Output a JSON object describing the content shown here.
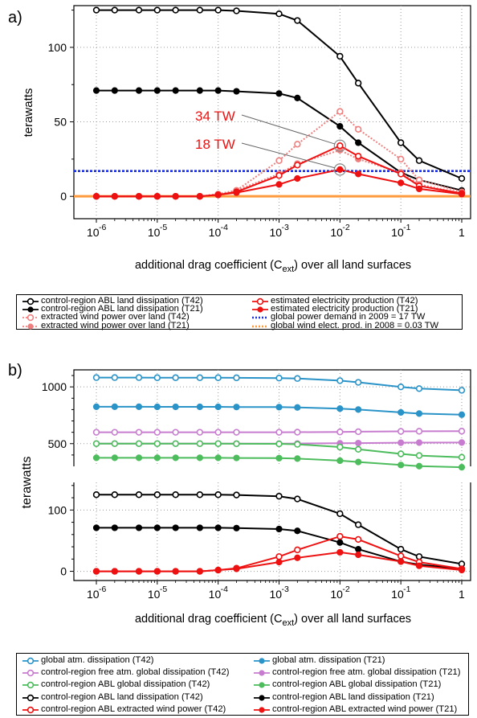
{
  "chart_data": [
    {
      "type": "line",
      "panel_label": "a)",
      "xlabel_main": "additional drag coefficient (C",
      "xlabel_sub": "ext",
      "xlabel_tail": ") over all land surfaces",
      "ylabel": "terawatts",
      "xscale": "log",
      "xlim": [
        1e-06,
        1
      ],
      "ylim": [
        -15,
        128
      ],
      "x_ticks": [
        {
          "v": 1e-06,
          "exp": "-6"
        },
        {
          "v": 1e-05,
          "exp": "-5"
        },
        {
          "v": 0.0001,
          "exp": "-4"
        },
        {
          "v": 0.001,
          "exp": "-3"
        },
        {
          "v": 0.01,
          "exp": "-2"
        },
        {
          "v": 0.1,
          "exp": "-1"
        },
        {
          "v": 1,
          "exp": ""
        }
      ],
      "x_tick_base": "10",
      "y_ticks": [
        {
          "v": 0,
          "label": "0"
        },
        {
          "v": 50,
          "label": "50"
        },
        {
          "v": 100,
          "label": "100"
        }
      ],
      "grid": true,
      "x": [
        1e-06,
        2e-06,
        5e-06,
        1e-05,
        2e-05,
        5e-05,
        0.0001,
        0.0002,
        0.001,
        0.002,
        0.01,
        0.02,
        0.1,
        0.2,
        1
      ],
      "series": [
        {
          "name": "control-region ABL land dissipation (T42)",
          "color": "#000000",
          "marker": "open",
          "dash": false,
          "values": [
            125,
            125,
            125,
            125,
            125,
            125,
            125,
            124.5,
            122.5,
            118,
            94,
            76,
            36,
            24,
            12
          ]
        },
        {
          "name": "control-region ABL land dissipation (T21)",
          "color": "#000000",
          "marker": "filled",
          "dash": false,
          "values": [
            71,
            71,
            71,
            71,
            71,
            71,
            71,
            70.5,
            69,
            66,
            47,
            36,
            16,
            11,
            4
          ]
        },
        {
          "name": "extracted wind power over land (T42)",
          "color": "#f08080",
          "marker": "open",
          "dash": true,
          "values": [
            0,
            0,
            0,
            0,
            0,
            0,
            1.5,
            4,
            24,
            35,
            57,
            45,
            25,
            11,
            3
          ]
        },
        {
          "name": "extracted wind power over land (T21)",
          "color": "#f08080",
          "marker": "filled",
          "dash": true,
          "values": [
            0,
            0,
            0,
            0,
            0,
            0,
            1.5,
            4,
            15,
            22,
            31,
            25,
            16,
            8,
            2
          ]
        },
        {
          "name": "estimated electricity production (T42)",
          "color": "#ee1111",
          "marker": "open",
          "dash": false,
          "values": [
            0,
            0,
            0,
            0,
            0,
            0,
            1,
            3,
            14,
            21,
            34,
            27,
            15,
            7,
            2
          ]
        },
        {
          "name": "estimated electricity production (T21)",
          "color": "#ee1111",
          "marker": "filled",
          "dash": false,
          "values": [
            0,
            0,
            0,
            0,
            0,
            0,
            1,
            2.5,
            8,
            12,
            18,
            15,
            9,
            5,
            1.5
          ]
        }
      ],
      "hlines": [
        {
          "name": "global power demand in 2009 = 17 TW",
          "value": 17,
          "color": "#1a2fe0",
          "dash": "dot"
        },
        {
          "name": "global wind elect. prod. in 2008 = 0.03 TW",
          "value": 0.03,
          "color": "#ff9a3c",
          "dash": "dot"
        }
      ],
      "annotations": [
        {
          "text": "34 TW",
          "color": "#ee1111",
          "point_x": 0.01,
          "point_y": 34
        },
        {
          "text": "18 TW",
          "color": "#ee1111",
          "point_x": 0.01,
          "point_y": 18
        }
      ]
    },
    {
      "type": "line",
      "panel_label": "b)",
      "xlabel_main": "additional drag coefficient (C",
      "xlabel_sub": "ext",
      "xlabel_tail": ") over all land surfaces",
      "ylabel": "terawatts",
      "xscale": "log",
      "xlim": [
        1e-06,
        1
      ],
      "broken_y_axis": true,
      "upper_ylim": [
        300,
        1150
      ],
      "upper_y_ticks": [
        {
          "v": 500,
          "label": "500"
        },
        {
          "v": 1000,
          "label": "1000"
        }
      ],
      "lower_ylim": [
        -15,
        145
      ],
      "lower_y_ticks": [
        {
          "v": 0,
          "label": "0"
        },
        {
          "v": 100,
          "label": "100"
        }
      ],
      "x_ticks": [
        {
          "v": 1e-06,
          "exp": "-6"
        },
        {
          "v": 1e-05,
          "exp": "-5"
        },
        {
          "v": 0.0001,
          "exp": "-4"
        },
        {
          "v": 0.001,
          "exp": "-3"
        },
        {
          "v": 0.01,
          "exp": "-2"
        },
        {
          "v": 0.1,
          "exp": "-1"
        },
        {
          "v": 1,
          "exp": ""
        }
      ],
      "x_tick_base": "10",
      "grid": true,
      "x": [
        1e-06,
        2e-06,
        5e-06,
        1e-05,
        2e-05,
        5e-05,
        0.0001,
        0.0002,
        0.001,
        0.002,
        0.01,
        0.02,
        0.1,
        0.2,
        1
      ],
      "upper_series": [
        {
          "name": "global atm. dissipation (T42)",
          "color": "#2a93c8",
          "marker": "open",
          "values": [
            1082,
            1082,
            1082,
            1081,
            1081,
            1081,
            1081,
            1080,
            1078,
            1074,
            1055,
            1040,
            1000,
            985,
            970
          ]
        },
        {
          "name": "global atm. dissipation (T21)",
          "color": "#2a93c8",
          "marker": "filled",
          "values": [
            825,
            825,
            825,
            824,
            824,
            824,
            824,
            823,
            822,
            819,
            808,
            800,
            775,
            765,
            755
          ]
        },
        {
          "name": "control-region free atm. global dissipation (T42)",
          "color": "#c77ccf",
          "marker": "open",
          "values": [
            600,
            600,
            600,
            600,
            600,
            600,
            600,
            600,
            600,
            601,
            603,
            605,
            608,
            609,
            610
          ]
        },
        {
          "name": "control-region free atm. global dissipation (T21)",
          "color": "#c77ccf",
          "marker": "filled",
          "values": [
            500,
            500,
            500,
            500,
            500,
            500,
            500,
            500,
            500,
            501,
            503,
            505,
            508,
            509,
            510
          ]
        },
        {
          "name": "control-region ABL global dissipation (T42)",
          "color": "#4cbc5c",
          "marker": "open",
          "values": [
            500,
            500,
            500,
            500,
            500,
            500,
            500,
            499,
            498,
            494,
            470,
            450,
            410,
            395,
            380
          ]
        },
        {
          "name": "control-region ABL global dissipation (T21)",
          "color": "#4cbc5c",
          "marker": "filled",
          "values": [
            375,
            375,
            375,
            375,
            375,
            375,
            375,
            374,
            372,
            368,
            350,
            338,
            312,
            302,
            292
          ]
        }
      ],
      "lower_series": [
        {
          "name": "control-region ABL land dissipation (T42)",
          "color": "#000000",
          "marker": "open",
          "values": [
            125,
            125,
            125,
            125,
            125,
            125,
            125,
            124.5,
            122.5,
            118,
            94,
            76,
            36,
            24,
            12
          ]
        },
        {
          "name": "control-region ABL land dissipation (T21)",
          "color": "#000000",
          "marker": "filled",
          "values": [
            71,
            71,
            71,
            71,
            71,
            71,
            71,
            70.5,
            69,
            66,
            47,
            36,
            16,
            11,
            4
          ]
        },
        {
          "name": "control-region ABL extracted wind power (T42)",
          "color": "#ee1111",
          "marker": "open",
          "values": [
            0,
            0,
            0,
            0,
            0,
            0,
            2,
            5,
            24,
            35,
            57,
            52,
            25,
            15,
            4
          ]
        },
        {
          "name": "control-region ABL extracted wind power (T21)",
          "color": "#ee1111",
          "marker": "filled",
          "values": [
            0,
            0,
            0,
            0,
            0,
            0,
            2,
            4,
            15,
            22,
            31,
            27,
            16,
            9,
            2
          ]
        }
      ]
    }
  ],
  "legend_a": [
    {
      "label": "control-region ABL land dissipation (T42)",
      "color": "#000000",
      "marker": "open",
      "dash": false
    },
    {
      "label": "estimated electricity production (T42)",
      "color": "#ee1111",
      "marker": "open",
      "dash": false
    },
    {
      "label": "control-region ABL land dissipation (T21)",
      "color": "#000000",
      "marker": "filled",
      "dash": false
    },
    {
      "label": "estimated electricity production (T21)",
      "color": "#ee1111",
      "marker": "filled",
      "dash": false
    },
    {
      "label": "extracted wind power over land (T42)",
      "color": "#f08080",
      "marker": "open",
      "dash": true
    },
    {
      "label": "global power demand in 2009 = 17 TW",
      "color": "#1a2fe0",
      "marker": "none",
      "dash": true
    },
    {
      "label": "extracted wind power over land (T21)",
      "color": "#f08080",
      "marker": "filled",
      "dash": true
    },
    {
      "label": "global wind elect. prod. in 2008 = 0.03 TW",
      "color": "#ff9a3c",
      "marker": "none",
      "dash": true
    }
  ],
  "legend_b": [
    {
      "label": "global atm. dissipation (T42)",
      "color": "#2a93c8",
      "marker": "open",
      "dash": false
    },
    {
      "label": "global atm. dissipation (T21)",
      "color": "#2a93c8",
      "marker": "filled",
      "dash": false
    },
    {
      "label": "control-region free atm. global dissipation (T42)",
      "color": "#c77ccf",
      "marker": "open",
      "dash": false
    },
    {
      "label": "control-region free atm. global dissipation (T21)",
      "color": "#c77ccf",
      "marker": "filled",
      "dash": false
    },
    {
      "label": "control-region ABL global dissipation (T42)",
      "color": "#4cbc5c",
      "marker": "open",
      "dash": false
    },
    {
      "label": "control-region ABL global dissipation (T21)",
      "color": "#4cbc5c",
      "marker": "filled",
      "dash": false
    },
    {
      "label": "control-region ABL land dissipation (T42)",
      "color": "#000000",
      "marker": "open",
      "dash": false
    },
    {
      "label": "control-region ABL land dissipation (T21)",
      "color": "#000000",
      "marker": "filled",
      "dash": false
    },
    {
      "label": "control-region ABL extracted wind power (T42)",
      "color": "#ee1111",
      "marker": "open",
      "dash": false
    },
    {
      "label": "control-region ABL extracted wind power (T21)",
      "color": "#ee1111",
      "marker": "filled",
      "dash": false
    }
  ]
}
